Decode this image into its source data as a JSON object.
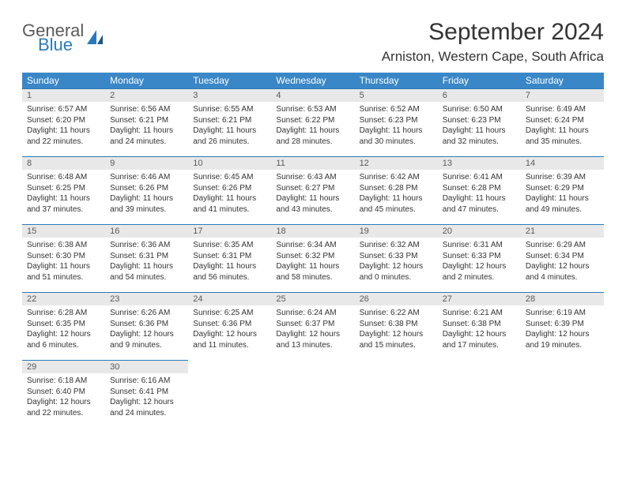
{
  "brand": {
    "line1": "General",
    "line2": "Blue"
  },
  "colors": {
    "header_bg": "#3a87c8",
    "header_text": "#ffffff",
    "daynum_bg": "#e8e8e8",
    "daynum_border": "#2a7ab9",
    "body_text": "#333333",
    "logo_gray": "#5a5a5a",
    "logo_blue": "#2a7ab9"
  },
  "title": "September 2024",
  "location": "Arniston, Western Cape, South Africa",
  "weekdays": [
    "Sunday",
    "Monday",
    "Tuesday",
    "Wednesday",
    "Thursday",
    "Friday",
    "Saturday"
  ],
  "weeks": [
    [
      {
        "day": "1",
        "sunrise": "Sunrise: 6:57 AM",
        "sunset": "Sunset: 6:20 PM",
        "daylight1": "Daylight: 11 hours",
        "daylight2": "and 22 minutes."
      },
      {
        "day": "2",
        "sunrise": "Sunrise: 6:56 AM",
        "sunset": "Sunset: 6:21 PM",
        "daylight1": "Daylight: 11 hours",
        "daylight2": "and 24 minutes."
      },
      {
        "day": "3",
        "sunrise": "Sunrise: 6:55 AM",
        "sunset": "Sunset: 6:21 PM",
        "daylight1": "Daylight: 11 hours",
        "daylight2": "and 26 minutes."
      },
      {
        "day": "4",
        "sunrise": "Sunrise: 6:53 AM",
        "sunset": "Sunset: 6:22 PM",
        "daylight1": "Daylight: 11 hours",
        "daylight2": "and 28 minutes."
      },
      {
        "day": "5",
        "sunrise": "Sunrise: 6:52 AM",
        "sunset": "Sunset: 6:23 PM",
        "daylight1": "Daylight: 11 hours",
        "daylight2": "and 30 minutes."
      },
      {
        "day": "6",
        "sunrise": "Sunrise: 6:50 AM",
        "sunset": "Sunset: 6:23 PM",
        "daylight1": "Daylight: 11 hours",
        "daylight2": "and 32 minutes."
      },
      {
        "day": "7",
        "sunrise": "Sunrise: 6:49 AM",
        "sunset": "Sunset: 6:24 PM",
        "daylight1": "Daylight: 11 hours",
        "daylight2": "and 35 minutes."
      }
    ],
    [
      {
        "day": "8",
        "sunrise": "Sunrise: 6:48 AM",
        "sunset": "Sunset: 6:25 PM",
        "daylight1": "Daylight: 11 hours",
        "daylight2": "and 37 minutes."
      },
      {
        "day": "9",
        "sunrise": "Sunrise: 6:46 AM",
        "sunset": "Sunset: 6:26 PM",
        "daylight1": "Daylight: 11 hours",
        "daylight2": "and 39 minutes."
      },
      {
        "day": "10",
        "sunrise": "Sunrise: 6:45 AM",
        "sunset": "Sunset: 6:26 PM",
        "daylight1": "Daylight: 11 hours",
        "daylight2": "and 41 minutes."
      },
      {
        "day": "11",
        "sunrise": "Sunrise: 6:43 AM",
        "sunset": "Sunset: 6:27 PM",
        "daylight1": "Daylight: 11 hours",
        "daylight2": "and 43 minutes."
      },
      {
        "day": "12",
        "sunrise": "Sunrise: 6:42 AM",
        "sunset": "Sunset: 6:28 PM",
        "daylight1": "Daylight: 11 hours",
        "daylight2": "and 45 minutes."
      },
      {
        "day": "13",
        "sunrise": "Sunrise: 6:41 AM",
        "sunset": "Sunset: 6:28 PM",
        "daylight1": "Daylight: 11 hours",
        "daylight2": "and 47 minutes."
      },
      {
        "day": "14",
        "sunrise": "Sunrise: 6:39 AM",
        "sunset": "Sunset: 6:29 PM",
        "daylight1": "Daylight: 11 hours",
        "daylight2": "and 49 minutes."
      }
    ],
    [
      {
        "day": "15",
        "sunrise": "Sunrise: 6:38 AM",
        "sunset": "Sunset: 6:30 PM",
        "daylight1": "Daylight: 11 hours",
        "daylight2": "and 51 minutes."
      },
      {
        "day": "16",
        "sunrise": "Sunrise: 6:36 AM",
        "sunset": "Sunset: 6:31 PM",
        "daylight1": "Daylight: 11 hours",
        "daylight2": "and 54 minutes."
      },
      {
        "day": "17",
        "sunrise": "Sunrise: 6:35 AM",
        "sunset": "Sunset: 6:31 PM",
        "daylight1": "Daylight: 11 hours",
        "daylight2": "and 56 minutes."
      },
      {
        "day": "18",
        "sunrise": "Sunrise: 6:34 AM",
        "sunset": "Sunset: 6:32 PM",
        "daylight1": "Daylight: 11 hours",
        "daylight2": "and 58 minutes."
      },
      {
        "day": "19",
        "sunrise": "Sunrise: 6:32 AM",
        "sunset": "Sunset: 6:33 PM",
        "daylight1": "Daylight: 12 hours",
        "daylight2": "and 0 minutes."
      },
      {
        "day": "20",
        "sunrise": "Sunrise: 6:31 AM",
        "sunset": "Sunset: 6:33 PM",
        "daylight1": "Daylight: 12 hours",
        "daylight2": "and 2 minutes."
      },
      {
        "day": "21",
        "sunrise": "Sunrise: 6:29 AM",
        "sunset": "Sunset: 6:34 PM",
        "daylight1": "Daylight: 12 hours",
        "daylight2": "and 4 minutes."
      }
    ],
    [
      {
        "day": "22",
        "sunrise": "Sunrise: 6:28 AM",
        "sunset": "Sunset: 6:35 PM",
        "daylight1": "Daylight: 12 hours",
        "daylight2": "and 6 minutes."
      },
      {
        "day": "23",
        "sunrise": "Sunrise: 6:26 AM",
        "sunset": "Sunset: 6:36 PM",
        "daylight1": "Daylight: 12 hours",
        "daylight2": "and 9 minutes."
      },
      {
        "day": "24",
        "sunrise": "Sunrise: 6:25 AM",
        "sunset": "Sunset: 6:36 PM",
        "daylight1": "Daylight: 12 hours",
        "daylight2": "and 11 minutes."
      },
      {
        "day": "25",
        "sunrise": "Sunrise: 6:24 AM",
        "sunset": "Sunset: 6:37 PM",
        "daylight1": "Daylight: 12 hours",
        "daylight2": "and 13 minutes."
      },
      {
        "day": "26",
        "sunrise": "Sunrise: 6:22 AM",
        "sunset": "Sunset: 6:38 PM",
        "daylight1": "Daylight: 12 hours",
        "daylight2": "and 15 minutes."
      },
      {
        "day": "27",
        "sunrise": "Sunrise: 6:21 AM",
        "sunset": "Sunset: 6:38 PM",
        "daylight1": "Daylight: 12 hours",
        "daylight2": "and 17 minutes."
      },
      {
        "day": "28",
        "sunrise": "Sunrise: 6:19 AM",
        "sunset": "Sunset: 6:39 PM",
        "daylight1": "Daylight: 12 hours",
        "daylight2": "and 19 minutes."
      }
    ],
    [
      {
        "day": "29",
        "sunrise": "Sunrise: 6:18 AM",
        "sunset": "Sunset: 6:40 PM",
        "daylight1": "Daylight: 12 hours",
        "daylight2": "and 22 minutes."
      },
      {
        "day": "30",
        "sunrise": "Sunrise: 6:16 AM",
        "sunset": "Sunset: 6:41 PM",
        "daylight1": "Daylight: 12 hours",
        "daylight2": "and 24 minutes."
      },
      null,
      null,
      null,
      null,
      null
    ]
  ]
}
